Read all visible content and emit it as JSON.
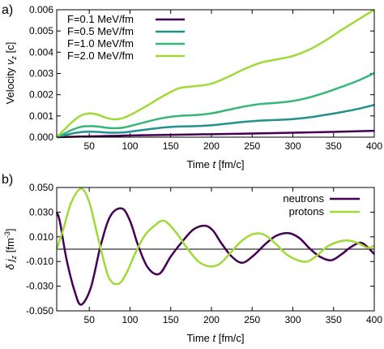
{
  "chart_data": [
    {
      "panel_label": "a)",
      "type": "line",
      "ylabel": "Velocity v_z [c]",
      "ylabel_parts": {
        "main": "Velocity ",
        "sym": "v",
        "sub": "z",
        "unit": " [c]"
      },
      "xlabel": "Time t [fm/c]",
      "xlabel_parts": {
        "pre": "Time ",
        "sym": "t",
        "post": " [fm/c]"
      },
      "xlim": [
        10,
        400
      ],
      "ylim": [
        0,
        0.006
      ],
      "xticks": [
        50,
        100,
        150,
        200,
        250,
        300,
        350,
        400
      ],
      "xtick_labels": [
        "50",
        "100",
        "150",
        "200",
        "250",
        "300",
        "350",
        "400"
      ],
      "yticks": [
        0,
        0.001,
        0.002,
        0.003,
        0.004,
        0.005,
        0.006
      ],
      "ytick_labels": [
        "0.000",
        "0.001",
        "0.002",
        "0.003",
        "0.004",
        "0.005",
        "0.006"
      ],
      "legend_position": "top-left",
      "series": [
        {
          "name": "F=0.1 MeV/fm",
          "color": "#440154",
          "x": [
            10,
            30,
            50,
            80,
            100,
            150,
            200,
            250,
            300,
            350,
            400
          ],
          "y": [
            0,
            2e-05,
            4e-05,
            6e-05,
            8e-05,
            0.00011,
            0.00014,
            0.00017,
            0.00021,
            0.00025,
            0.0003
          ]
        },
        {
          "name": "F=0.5 MeV/fm",
          "color": "#21918c",
          "x": [
            10,
            20,
            30,
            40,
            50,
            60,
            70,
            80,
            90,
            100,
            120,
            140,
            160,
            180,
            200,
            220,
            240,
            260,
            280,
            300,
            320,
            340,
            360,
            380,
            400
          ],
          "y": [
            0,
            9e-05,
            0.00018,
            0.00024,
            0.00026,
            0.00025,
            0.00022,
            0.00021,
            0.00022,
            0.00026,
            0.00036,
            0.00045,
            0.0005,
            0.00052,
            0.00056,
            0.00064,
            0.00072,
            0.00078,
            0.00081,
            0.00085,
            0.00093,
            0.00105,
            0.00118,
            0.00133,
            0.00152
          ]
        },
        {
          "name": "F=1.0 MeV/fm",
          "color": "#35b779",
          "x": [
            10,
            20,
            30,
            40,
            50,
            60,
            70,
            80,
            90,
            100,
            120,
            140,
            160,
            180,
            200,
            220,
            240,
            260,
            280,
            300,
            320,
            340,
            360,
            380,
            400
          ],
          "y": [
            0,
            0.00018,
            0.00036,
            0.00049,
            0.00052,
            0.0005,
            0.00045,
            0.00042,
            0.00044,
            0.00052,
            0.00072,
            0.0009,
            0.001,
            0.00104,
            0.00112,
            0.00128,
            0.00144,
            0.00156,
            0.00162,
            0.0017,
            0.00187,
            0.0021,
            0.00237,
            0.00266,
            0.00302
          ]
        },
        {
          "name": "F=2.0 MeV/fm",
          "color": "#a0da39",
          "x": [
            10,
            20,
            30,
            40,
            50,
            60,
            70,
            80,
            90,
            100,
            120,
            140,
            160,
            180,
            200,
            220,
            240,
            260,
            280,
            300,
            320,
            340,
            360,
            380,
            400
          ],
          "y": [
            0,
            0.00038,
            0.00075,
            0.00102,
            0.00112,
            0.00106,
            0.00092,
            0.00084,
            0.00088,
            0.00104,
            0.00146,
            0.00192,
            0.0023,
            0.0024,
            0.00252,
            0.00283,
            0.0032,
            0.0035,
            0.00366,
            0.00382,
            0.00412,
            0.00455,
            0.00505,
            0.00553,
            0.006
          ]
        }
      ]
    },
    {
      "panel_label": "b)",
      "type": "line",
      "ylabel": "δ j_z [fm^-3]",
      "ylabel_parts": {
        "sym": "δ",
        "j": "j",
        "sub": "z",
        "unit": " [fm",
        "sup": "-3",
        "close": "]"
      },
      "xlabel": "Time t [fm/c]",
      "xlabel_parts": {
        "pre": "Time ",
        "sym": "t",
        "post": " [fm/c]"
      },
      "xlim": [
        10,
        400
      ],
      "ylim": [
        -0.05,
        0.05
      ],
      "xticks": [
        50,
        100,
        150,
        200,
        250,
        300,
        350,
        400
      ],
      "xtick_labels": [
        "50",
        "100",
        "150",
        "200",
        "250",
        "300",
        "350",
        "400"
      ],
      "yticks": [
        -0.05,
        -0.03,
        -0.01,
        0.01,
        0.03,
        0.05
      ],
      "ytick_labels": [
        "-0.050",
        "-0.030",
        "-0.010",
        "0.010",
        "0.030",
        "0.050"
      ],
      "zero_line": 0,
      "legend_position": "top-right",
      "series": [
        {
          "name": "neutrons",
          "color": "#440154",
          "x": [
            10,
            14,
            22,
            32,
            40,
            52,
            64,
            76,
            90,
            100,
            110,
            122,
            136,
            150,
            164,
            178,
            192,
            202,
            212,
            225,
            238,
            252,
            266,
            280,
            295,
            308,
            320,
            333,
            347,
            360,
            372,
            385,
            400
          ],
          "y": [
            0.03,
            0.022,
            -0.008,
            -0.034,
            -0.045,
            -0.031,
            0.003,
            0.027,
            0.033,
            0.023,
            0.003,
            -0.015,
            -0.02,
            -0.006,
            0.006,
            0.016,
            0.019,
            0.015,
            0.005,
            -0.006,
            -0.011,
            -0.005,
            0.004,
            0.011,
            0.013,
            0.009,
            0.001,
            -0.006,
            -0.009,
            -0.004,
            0.002,
            0.005,
            -0.004
          ]
        },
        {
          "name": "protons",
          "color": "#a0da39",
          "x": [
            10,
            18,
            28,
            40,
            50,
            62,
            74,
            86,
            96,
            106,
            118,
            130,
            142,
            156,
            170,
            184,
            198,
            210,
            222,
            236,
            250,
            264,
            278,
            292,
            306,
            318,
            330,
            342,
            356,
            368,
            380,
            392,
            400
          ],
          "y": [
            0,
            0.016,
            0.038,
            0.049,
            0.038,
            0.006,
            -0.023,
            -0.028,
            -0.019,
            -0.004,
            0.011,
            0.019,
            0.023,
            0.014,
            0.001,
            -0.01,
            -0.014,
            -0.012,
            -0.004,
            0.006,
            0.012,
            0.012,
            0.005,
            -0.004,
            -0.009,
            -0.01,
            -0.005,
            0.002,
            0.006,
            0.007,
            0.005,
            0.001,
            0.003
          ]
        }
      ]
    }
  ]
}
